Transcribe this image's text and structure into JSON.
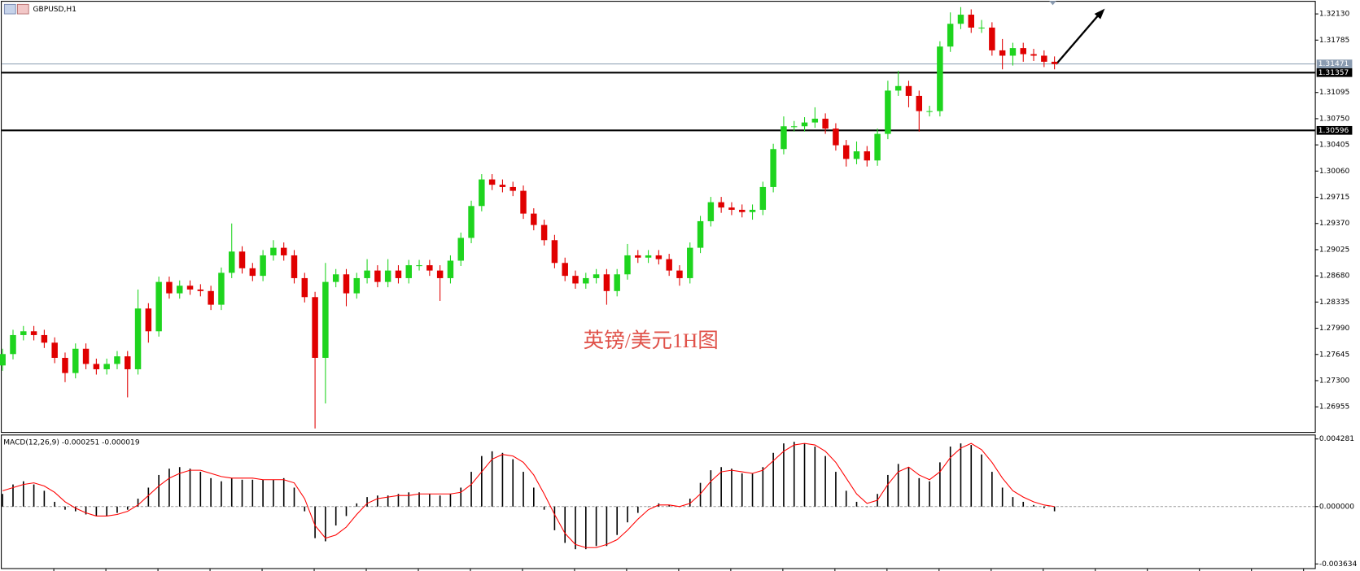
{
  "chart_data": {
    "type": "candlestick",
    "title": "GBPUSD,H1",
    "annotation": "英镑/美元1H图",
    "open": [
      1.275,
      1.2765,
      1.279,
      1.2795,
      1.279,
      1.278,
      1.276,
      1.274,
      1.2772,
      1.2752,
      1.2745,
      1.2752,
      1.2762,
      1.2745,
      1.2825,
      1.2795,
      1.286,
      1.2845,
      1.2855,
      1.285,
      1.2848,
      1.283,
      1.2872,
      1.29,
      1.2878,
      1.2868,
      1.2895,
      1.2905,
      1.2895,
      1.2865,
      1.284,
      1.276,
      1.286,
      1.287,
      1.2845,
      1.2865,
      1.2875,
      1.286,
      1.2875,
      1.2865,
      1.2882,
      1.2882,
      1.2875,
      1.2865,
      1.2888,
      1.2918,
      1.296,
      1.2995,
      1.2988,
      1.2985,
      1.298,
      1.295,
      1.2935,
      1.2915,
      1.2885,
      1.2868,
      1.2858,
      1.2865,
      1.287,
      1.2848,
      1.287,
      1.2895,
      1.2892,
      1.2895,
      1.289,
      1.2875,
      1.2865,
      1.2905,
      1.294,
      1.2965,
      1.2958,
      1.2955,
      1.2952,
      1.2955,
      1.2985,
      1.3035,
      1.3065,
      1.3065,
      1.307,
      1.3075,
      1.3062,
      1.304,
      1.3022,
      1.3032,
      1.302,
      1.3055,
      1.3112,
      1.3118,
      1.3105,
      1.3085,
      1.3085,
      1.317,
      1.32,
      1.3212,
      1.3195,
      1.3195,
      1.3165,
      1.3158,
      1.3168,
      1.316,
      1.3158,
      1.315
    ],
    "high": [
      1.2772,
      1.2797,
      1.2802,
      1.2802,
      1.2797,
      1.2787,
      1.2767,
      1.2779,
      1.2779,
      1.2759,
      1.2759,
      1.2769,
      1.2769,
      1.285,
      1.2832,
      1.2867,
      1.2867,
      1.2862,
      1.2862,
      1.2857,
      1.2855,
      1.2879,
      1.2937,
      1.2907,
      1.2885,
      1.2902,
      1.2915,
      1.2912,
      1.2902,
      1.2872,
      1.2847,
      1.2885,
      1.2877,
      1.2877,
      1.2872,
      1.289,
      1.2882,
      1.289,
      1.2882,
      1.2889,
      1.2889,
      1.2889,
      1.2882,
      1.2895,
      1.2925,
      1.2967,
      1.3002,
      1.3002,
      1.2995,
      1.2992,
      1.2987,
      1.2957,
      1.2942,
      1.2922,
      1.2892,
      1.2875,
      1.2872,
      1.2877,
      1.2877,
      1.2877,
      1.291,
      1.2902,
      1.2902,
      1.2902,
      1.2897,
      1.2882,
      1.2912,
      1.2947,
      1.2972,
      1.2972,
      1.2965,
      1.2962,
      1.2962,
      1.2992,
      1.3042,
      1.3078,
      1.3072,
      1.3077,
      1.309,
      1.3082,
      1.3069,
      1.3047,
      1.3045,
      1.3039,
      1.3062,
      1.3125,
      1.3138,
      1.3125,
      1.3112,
      1.3092,
      1.3177,
      1.3215,
      1.3222,
      1.3219,
      1.3205,
      1.3202,
      1.318,
      1.3175,
      1.3175,
      1.3167,
      1.3165,
      1.3157
    ],
    "low": [
      1.2743,
      1.2758,
      1.2783,
      1.2783,
      1.2773,
      1.2753,
      1.2728,
      1.2733,
      1.2745,
      1.2738,
      1.2738,
      1.2745,
      1.2708,
      1.2738,
      1.278,
      1.2788,
      1.2838,
      1.2838,
      1.2843,
      1.2841,
      1.2823,
      1.2823,
      1.2865,
      1.2871,
      1.2861,
      1.2861,
      1.2888,
      1.2888,
      1.2858,
      1.2833,
      1.2667,
      1.27,
      1.2853,
      1.2828,
      1.2838,
      1.2858,
      1.2853,
      1.2853,
      1.2858,
      1.2858,
      1.2875,
      1.2868,
      1.2835,
      1.2858,
      1.2881,
      1.2911,
      1.2953,
      1.2981,
      1.2978,
      1.2973,
      1.2943,
      1.2928,
      1.2908,
      1.2878,
      1.2861,
      1.2851,
      1.2851,
      1.2858,
      1.283,
      1.2841,
      1.2863,
      1.2885,
      1.2885,
      1.2883,
      1.2868,
      1.2855,
      1.2858,
      1.2898,
      1.2933,
      1.2951,
      1.2948,
      1.2945,
      1.2942,
      1.2948,
      1.2978,
      1.3028,
      1.3058,
      1.3058,
      1.3063,
      1.3055,
      1.3033,
      1.3012,
      1.3015,
      1.3012,
      1.3013,
      1.3048,
      1.3105,
      1.309,
      1.3058,
      1.3078,
      1.3078,
      1.3163,
      1.3193,
      1.3188,
      1.3188,
      1.3158,
      1.314,
      1.3145,
      1.315,
      1.3151,
      1.3143,
      1.314
    ],
    "close": [
      1.2765,
      1.279,
      1.2795,
      1.279,
      1.278,
      1.276,
      1.274,
      1.2772,
      1.2752,
      1.2745,
      1.2752,
      1.2762,
      1.2745,
      1.2825,
      1.2795,
      1.286,
      1.2845,
      1.2855,
      1.285,
      1.2848,
      1.283,
      1.2872,
      1.29,
      1.2878,
      1.2868,
      1.2895,
      1.2905,
      1.2895,
      1.2865,
      1.284,
      1.276,
      1.286,
      1.287,
      1.2845,
      1.2865,
      1.2875,
      1.286,
      1.2875,
      1.2865,
      1.2882,
      1.2882,
      1.2875,
      1.2865,
      1.2888,
      1.2918,
      1.296,
      1.2995,
      1.2988,
      1.2985,
      1.298,
      1.295,
      1.2935,
      1.2915,
      1.2885,
      1.2868,
      1.2858,
      1.2865,
      1.287,
      1.2848,
      1.287,
      1.2895,
      1.2892,
      1.2895,
      1.289,
      1.2875,
      1.2865,
      1.2905,
      1.294,
      1.2965,
      1.2958,
      1.2955,
      1.2952,
      1.2955,
      1.2985,
      1.3035,
      1.3065,
      1.3065,
      1.307,
      1.3075,
      1.3062,
      1.304,
      1.3022,
      1.3032,
      1.302,
      1.3055,
      1.3112,
      1.3118,
      1.3105,
      1.3085,
      1.3085,
      1.317,
      1.32,
      1.3212,
      1.3195,
      1.3195,
      1.3165,
      1.3158,
      1.3168,
      1.316,
      1.3158,
      1.315,
      1.3147
    ],
    "up_color": "#1ed41e",
    "down_color": "#e00000",
    "ylim": [
      1.26624,
      1.32279
    ],
    "yticks": [
      {
        "value": 1.3213,
        "label": "1.32130"
      },
      1.31785,
      1.31095,
      {
        "value": 1.3075,
        "label": "1.30750"
      },
      1.30405,
      {
        "value": 1.3006,
        "label": "1.30060"
      },
      1.29715,
      {
        "value": 1.2937,
        "label": "1.29370"
      },
      1.29025,
      {
        "value": 1.2868,
        "label": "1.28680"
      },
      1.28335,
      {
        "value": 1.2799,
        "label": "1.27990"
      },
      1.27645,
      {
        "value": 1.273,
        "label": "1.27300"
      },
      1.26955
    ],
    "grid": false,
    "hlines": [
      {
        "value": 1.31357,
        "color": "#000000"
      },
      {
        "value": 1.30596,
        "color": "#000000"
      }
    ],
    "last_price": {
      "value": 1.31471,
      "color": "#8a9bb0"
    },
    "macd": {
      "label": "MACD(12,26,9) -0.000251 -0.000019",
      "histogram": [
        0.0008,
        0.0014,
        0.0016,
        0.0014,
        0.001,
        0.0003,
        -0.0002,
        -0.0003,
        -0.0005,
        -0.0006,
        -0.0006,
        -0.0004,
        -0.0002,
        0.0005,
        0.0012,
        0.002,
        0.0024,
        0.0025,
        0.0024,
        0.0022,
        0.0018,
        0.0016,
        0.0018,
        0.0017,
        0.0017,
        0.0017,
        0.0017,
        0.0018,
        0.0012,
        -0.0003,
        -0.002,
        -0.0022,
        -0.0012,
        -0.0006,
        0.0002,
        0.0006,
        0.0007,
        0.0007,
        0.0008,
        0.0009,
        0.0009,
        0.0008,
        0.0007,
        0.0008,
        0.0012,
        0.0022,
        0.0032,
        0.0035,
        0.0034,
        0.003,
        0.0022,
        0.0012,
        -0.0002,
        -0.0015,
        -0.0023,
        -0.0027,
        -0.0027,
        -0.0025,
        -0.0025,
        -0.0018,
        -0.001,
        -0.0004,
        0.0,
        0.0002,
        0.0001,
        0.0,
        0.0005,
        0.0015,
        0.0023,
        0.0025,
        0.0024,
        0.0021,
        0.0021,
        0.0025,
        0.0034,
        0.004,
        0.0041,
        0.004,
        0.0038,
        0.0032,
        0.0022,
        0.001,
        0.0003,
        0.0,
        0.0008,
        0.002,
        0.0027,
        0.0025,
        0.0018,
        0.0016,
        0.0028,
        0.0038,
        0.004,
        0.0039,
        0.0033,
        0.0022,
        0.0012,
        0.0006,
        0.0003,
        0.0001,
        -0.0001,
        -0.0003
      ],
      "signal": [
        0.001,
        0.0012,
        0.0014,
        0.0015,
        0.0013,
        0.0009,
        0.0003,
        -0.0001,
        -0.0004,
        -0.0006,
        -0.0006,
        -0.0005,
        -0.0003,
        0.0001,
        0.0007,
        0.0013,
        0.0018,
        0.0021,
        0.0023,
        0.0023,
        0.0021,
        0.0019,
        0.0018,
        0.0018,
        0.0018,
        0.0017,
        0.0017,
        0.0017,
        0.0015,
        0.0005,
        -0.0012,
        -0.002,
        -0.0018,
        -0.0013,
        -0.0005,
        0.0002,
        0.0005,
        0.0006,
        0.0007,
        0.0007,
        0.0008,
        0.0008,
        0.0008,
        0.0008,
        0.0009,
        0.0014,
        0.0022,
        0.003,
        0.0033,
        0.0032,
        0.0028,
        0.002,
        0.0008,
        -0.0005,
        -0.0017,
        -0.0024,
        -0.0026,
        -0.0026,
        -0.0024,
        -0.0021,
        -0.0015,
        -0.0008,
        -0.0002,
        0.0001,
        0.0001,
        0.0,
        0.0002,
        0.0008,
        0.0016,
        0.0022,
        0.0023,
        0.0022,
        0.0021,
        0.0023,
        0.0029,
        0.0035,
        0.0039,
        0.004,
        0.0039,
        0.0035,
        0.0028,
        0.0018,
        0.0008,
        0.0002,
        0.0004,
        0.0014,
        0.0022,
        0.0025,
        0.002,
        0.0017,
        0.0022,
        0.0031,
        0.0037,
        0.004,
        0.0036,
        0.0028,
        0.0018,
        0.001,
        0.0006,
        0.0003,
        0.0001,
        0.0
      ],
      "histogram_color": "#000000",
      "signal_color": "#ff0000",
      "ylim": [
        -0.0039,
        0.00445
      ],
      "yticks": [
        0.004281,
        {
          "value": 0,
          "label": "0.000000"
        },
        -0.003634
      ]
    }
  }
}
